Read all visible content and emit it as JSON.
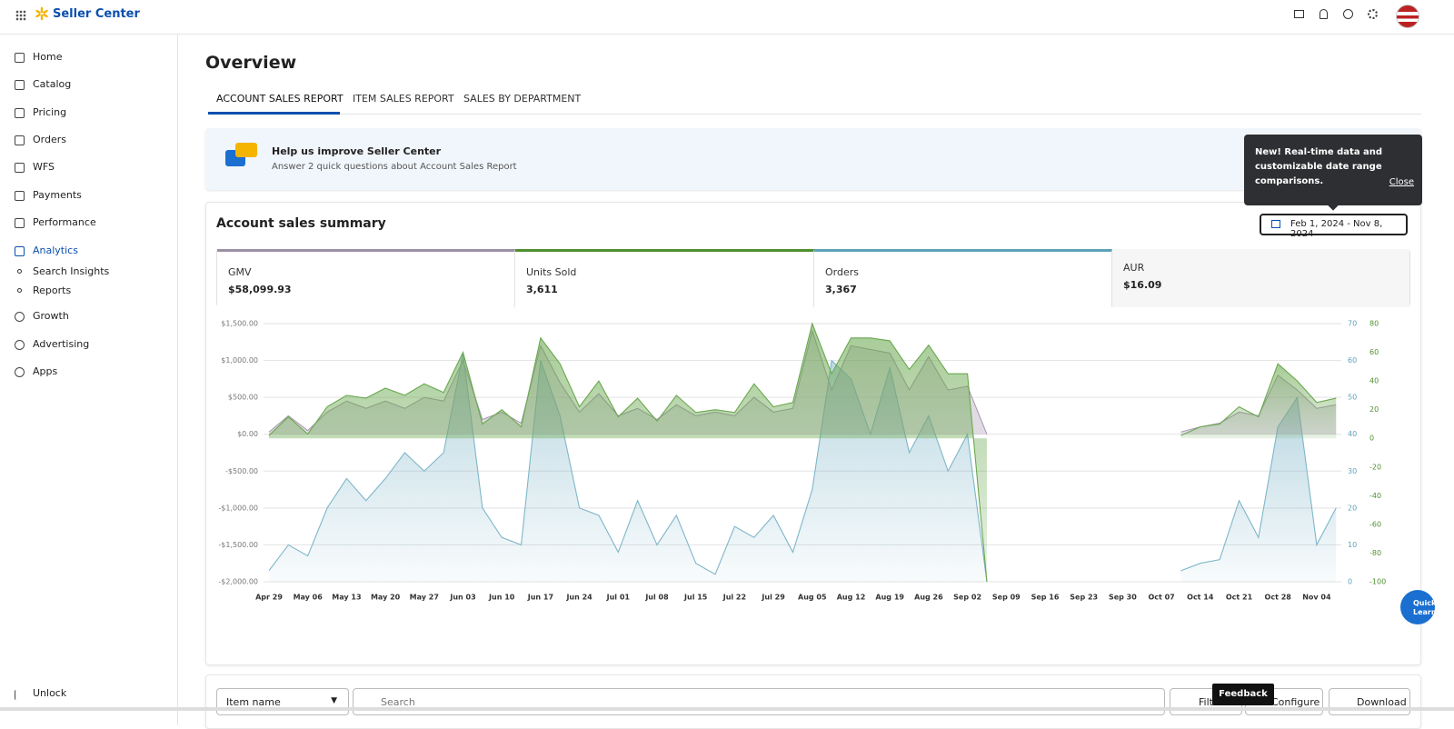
{
  "header": {
    "brand": "Seller Center"
  },
  "sidebar": {
    "items": [
      "Home",
      "Catalog",
      "Pricing",
      "Orders",
      "WFS",
      "Payments",
      "Performance",
      "Analytics"
    ],
    "sub_items": [
      "Search Insights",
      "Reports"
    ],
    "items_after": [
      "Growth",
      "Advertising",
      "Apps"
    ],
    "footer": "Unlock"
  },
  "page": {
    "title": "Overview",
    "tabs": [
      "ACCOUNT SALES REPORT",
      "ITEM SALES REPORT",
      "SALES BY DEPARTMENT"
    ]
  },
  "banner": {
    "title": "Help us improve Seller Center",
    "subtitle": "Answer 2 quick questions about Account Sales Report"
  },
  "tooltip": {
    "text": "New! Real-time data and customizable date range comparisons.",
    "close": "Close"
  },
  "summary": {
    "title": "Account sales summary",
    "date_range": "Feb 1, 2024 - Nov 8, 2024",
    "kpis": [
      {
        "label": "GMV",
        "value": "$58,099.93"
      },
      {
        "label": "Units Sold",
        "value": "3,611"
      },
      {
        "label": "Orders",
        "value": "3,367"
      },
      {
        "label": "AUR",
        "value": "$16.09"
      }
    ]
  },
  "chart_data": {
    "type": "area",
    "categories": [
      "Apr 29",
      null,
      "May 06",
      null,
      "May 13",
      null,
      "May 20",
      null,
      "May 27",
      null,
      "Jun 03",
      null,
      "Jun 10",
      null,
      "Jun 17",
      null,
      "Jun 24",
      null,
      "Jul 01",
      null,
      "Jul 08",
      null,
      "Jul 15",
      null,
      "Jul 22",
      null,
      "Jul 29",
      null,
      "Aug 05",
      null,
      "Aug 12",
      null,
      "Aug 19",
      null,
      "Aug 26",
      null,
      "Sep 02",
      null,
      "Sep 09",
      null,
      "Sep 16",
      null,
      "Sep 23",
      null,
      "Sep 30",
      null,
      "Oct 07",
      null,
      "Oct 14",
      null,
      "Oct 21",
      null,
      "Oct 28",
      null,
      "Nov 04",
      null
    ],
    "series": [
      {
        "name": "Orders",
        "axis": "y2",
        "color": "#7fb6c9",
        "values": [
          3,
          10,
          7,
          20,
          28,
          22,
          28,
          35,
          30,
          35,
          62,
          20,
          12,
          10,
          60,
          45,
          20,
          18,
          8,
          22,
          10,
          18,
          5,
          2,
          15,
          12,
          18,
          8,
          25,
          60,
          55,
          40,
          58,
          35,
          45,
          30,
          40,
          0,
          null,
          null,
          null,
          null,
          null,
          null,
          null,
          null,
          null,
          3,
          5,
          6,
          22,
          12,
          42,
          50,
          10,
          20
        ]
      },
      {
        "name": "GMV",
        "color": "#a99bb3",
        "values": [
          30,
          250,
          50,
          300,
          450,
          350,
          450,
          350,
          500,
          450,
          1000,
          200,
          300,
          150,
          1200,
          700,
          300,
          550,
          250,
          350,
          200,
          400,
          250,
          300,
          250,
          500,
          300,
          350,
          1400,
          600,
          1200,
          1150,
          1100,
          600,
          1050,
          600,
          650,
          0,
          null,
          null,
          null,
          null,
          null,
          null,
          null,
          null,
          null,
          30,
          100,
          150,
          300,
          250,
          800,
          600,
          350,
          400
        ]
      },
      {
        "name": "Units Sold",
        "axis": "y3",
        "color": "#6aa84f",
        "values": [
          2,
          15,
          3,
          22,
          30,
          28,
          35,
          30,
          38,
          32,
          60,
          10,
          20,
          8,
          70,
          52,
          22,
          40,
          15,
          28,
          12,
          30,
          18,
          20,
          18,
          38,
          22,
          25,
          80,
          45,
          70,
          70,
          68,
          48,
          65,
          45,
          45,
          -100,
          null,
          null,
          null,
          null,
          null,
          null,
          null,
          null,
          null,
          2,
          8,
          10,
          22,
          15,
          52,
          40,
          25,
          28
        ]
      }
    ],
    "ylim": [
      -2000,
      1500
    ],
    "yticks": [
      {
        "value": -2000,
        "label": "-$2,000.00"
      },
      {
        "value": -1500,
        "label": "-$1,500.00"
      },
      {
        "value": -1000,
        "label": "-$1,000.00"
      },
      {
        "value": -500,
        "label": "-$500.00"
      },
      {
        "value": 0,
        "label": "$0.00"
      },
      {
        "value": 500,
        "label": "$500.00"
      },
      {
        "value": 1000,
        "label": "$1,000.00"
      },
      {
        "value": 1500,
        "label": "$1,500.00"
      }
    ],
    "y2lim": [
      0,
      70
    ],
    "y2ticks": [
      0,
      10,
      20,
      30,
      40,
      50,
      60,
      70
    ],
    "y3lim": [
      -100,
      80
    ],
    "y3ticks": [
      -100,
      -80,
      -60,
      -40,
      -20,
      0,
      20,
      40,
      60,
      80
    ],
    "grid": true
  },
  "toolbar": {
    "field": "Item name",
    "search": "Search",
    "filters": "Filters",
    "configure": "Configure",
    "download": "Download",
    "feedback": "Feedback",
    "quick": "Quick Learn"
  }
}
